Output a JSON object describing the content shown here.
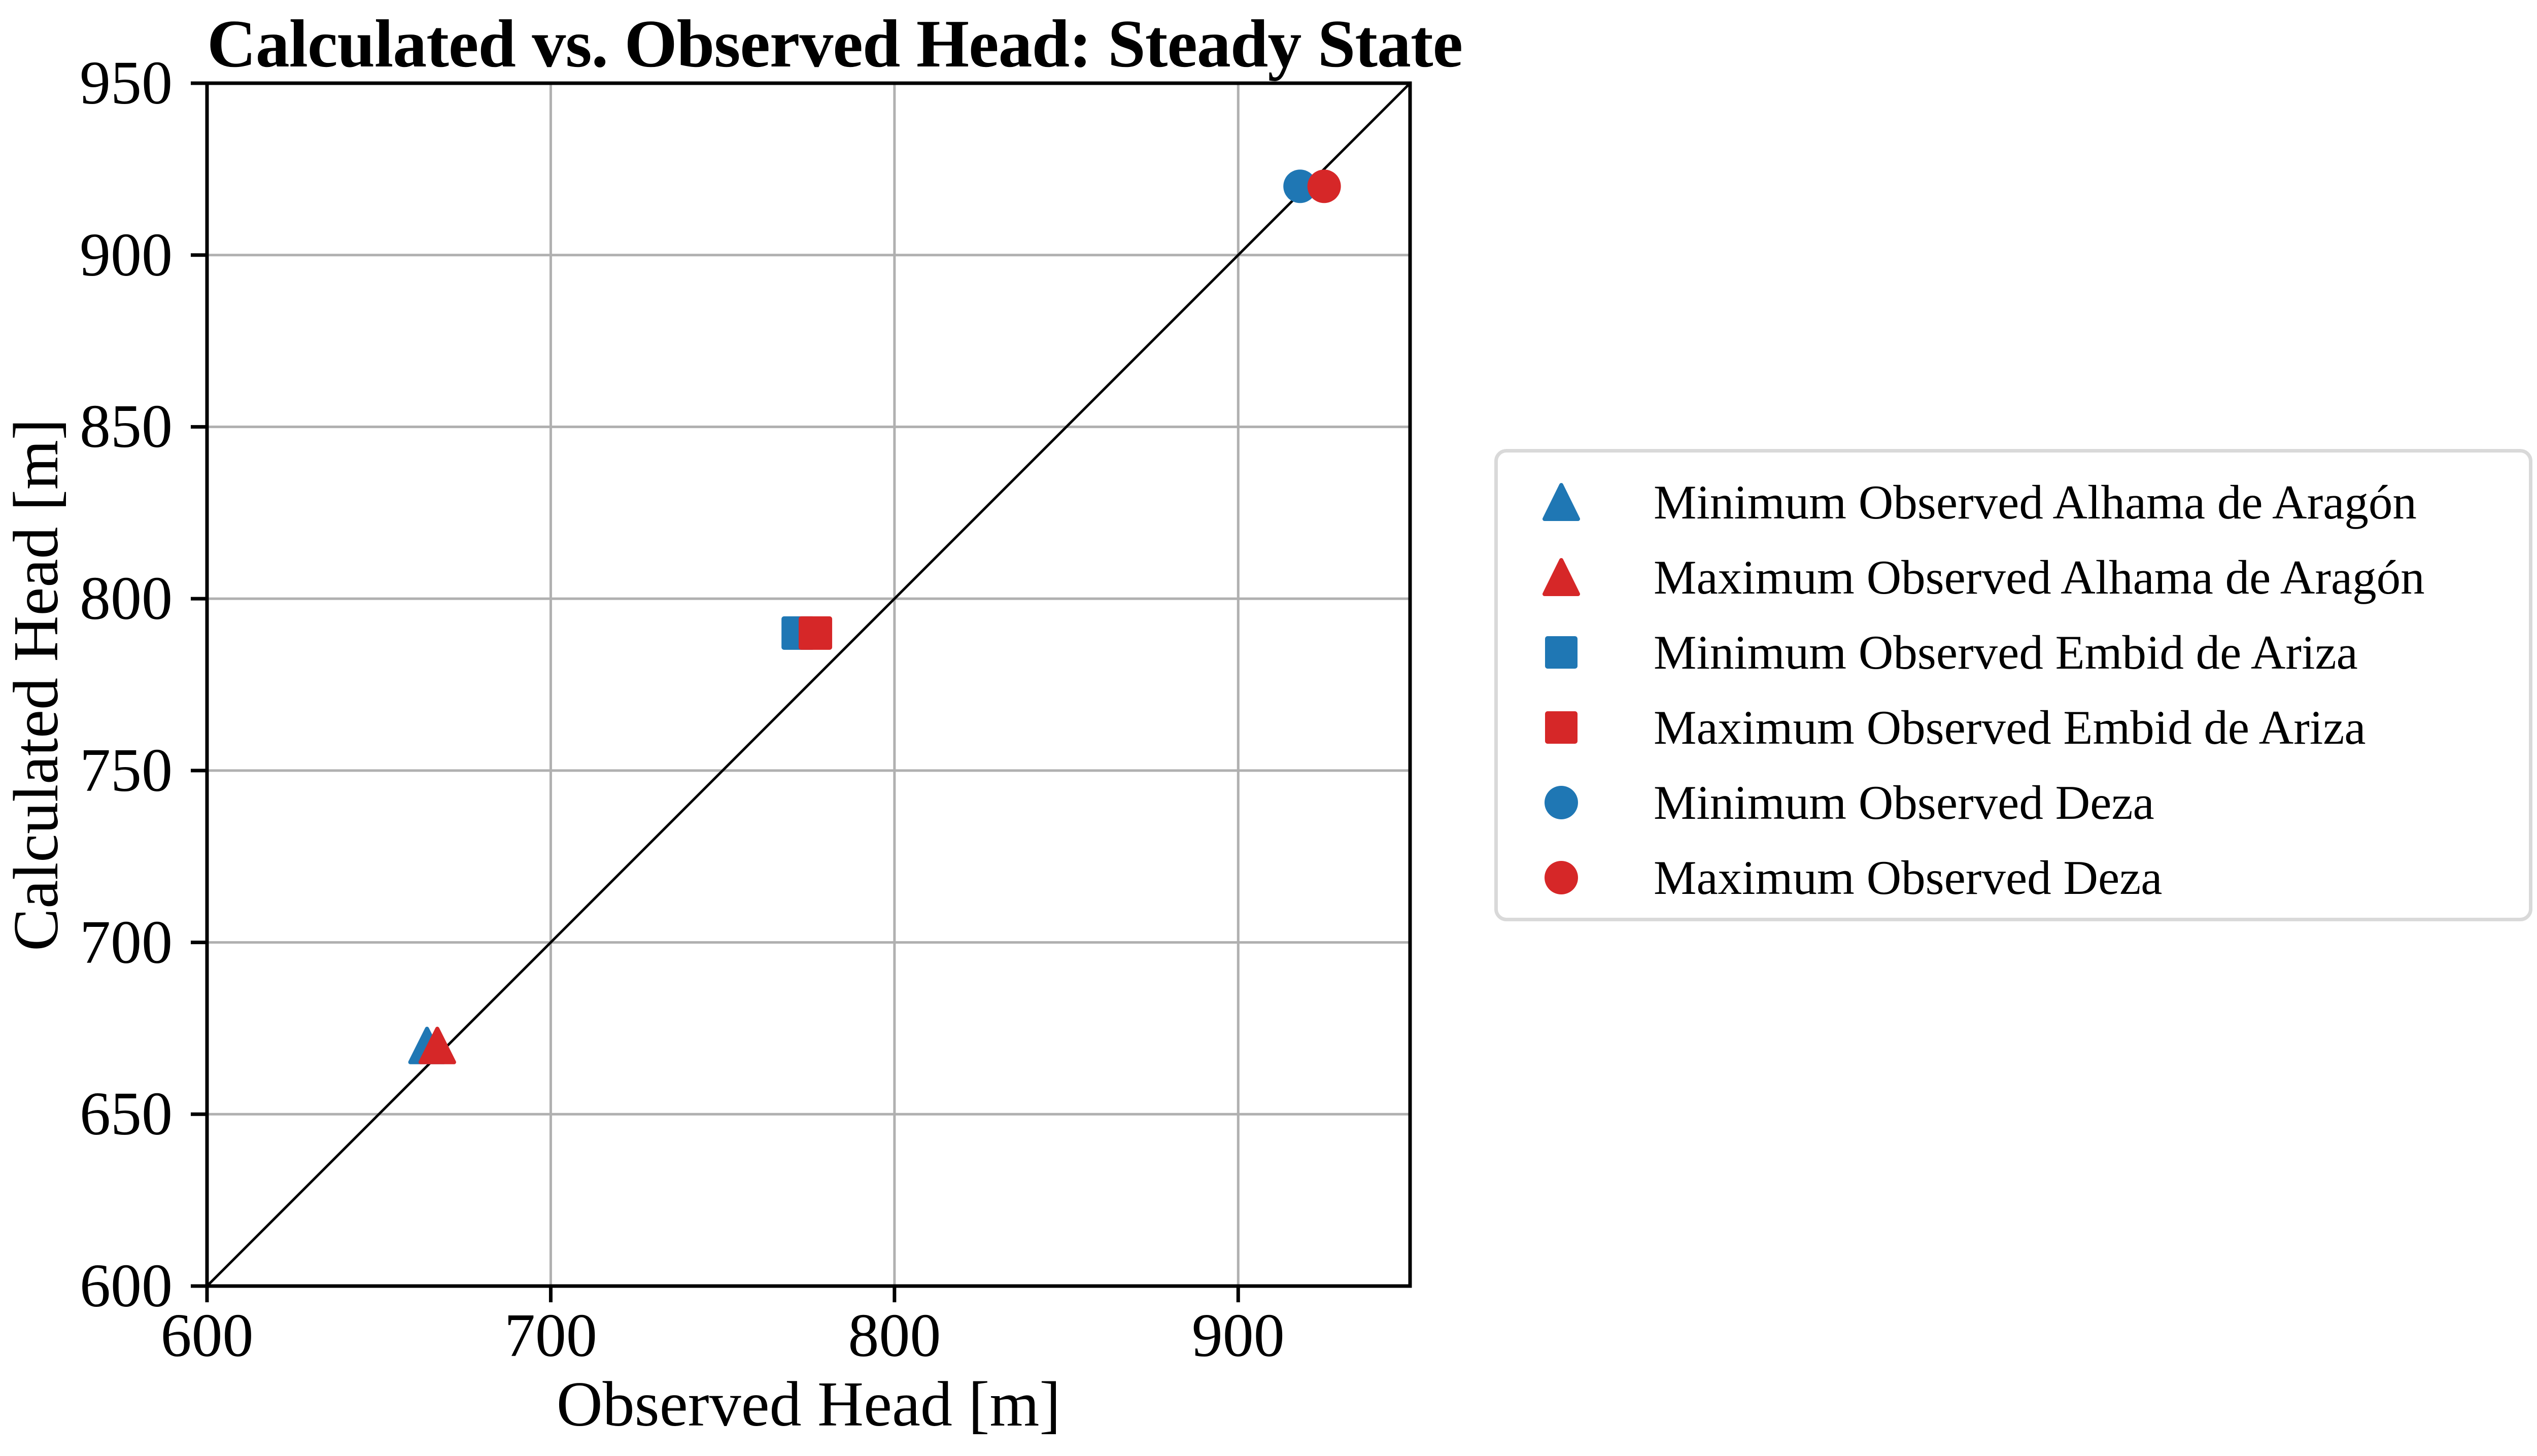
{
  "chart_data": {
    "type": "scatter",
    "title": "Calculated vs. Observed Head: Steady State",
    "xlabel": "Observed Head [m]",
    "ylabel": "Calculated Head [m]",
    "xlim": [
      600,
      950
    ],
    "ylim": [
      600,
      950
    ],
    "xticks": [
      600,
      700,
      800,
      900
    ],
    "yticks": [
      600,
      650,
      700,
      750,
      800,
      850,
      900,
      950
    ],
    "grid": true,
    "legend_position": "outside right",
    "reference_line": {
      "name": "1:1 line",
      "x": [
        600,
        950
      ],
      "y": [
        600,
        950
      ],
      "color": "#000000"
    },
    "series": [
      {
        "label": "Minimum Observed Alhama de Aragón",
        "marker": "triangle-up",
        "color": "#1f77b4",
        "points": [
          {
            "x": 664,
            "y": 670
          }
        ]
      },
      {
        "label": "Maximum Observed Alhama de Aragón",
        "marker": "triangle-up",
        "color": "#d62728",
        "points": [
          {
            "x": 667,
            "y": 670
          }
        ]
      },
      {
        "label": "Minimum Observed Embid de Ariza",
        "marker": "square",
        "color": "#1f77b4",
        "points": [
          {
            "x": 772,
            "y": 790
          }
        ]
      },
      {
        "label": "Maximum Observed Embid de Ariza",
        "marker": "square",
        "color": "#d62728",
        "points": [
          {
            "x": 777,
            "y": 790
          }
        ]
      },
      {
        "label": "Minimum Observed Deza",
        "marker": "circle",
        "color": "#1f77b4",
        "points": [
          {
            "x": 918,
            "y": 920
          }
        ]
      },
      {
        "label": "Maximum Observed Deza",
        "marker": "circle",
        "color": "#d62728",
        "points": [
          {
            "x": 925,
            "y": 920
          }
        ]
      }
    ],
    "colors": {
      "blue": "#1f77b4",
      "red": "#d62728",
      "grid": "#b0b0b0",
      "axis": "#000000",
      "legend_border": "#d9d9d9",
      "background": "#ffffff"
    }
  }
}
